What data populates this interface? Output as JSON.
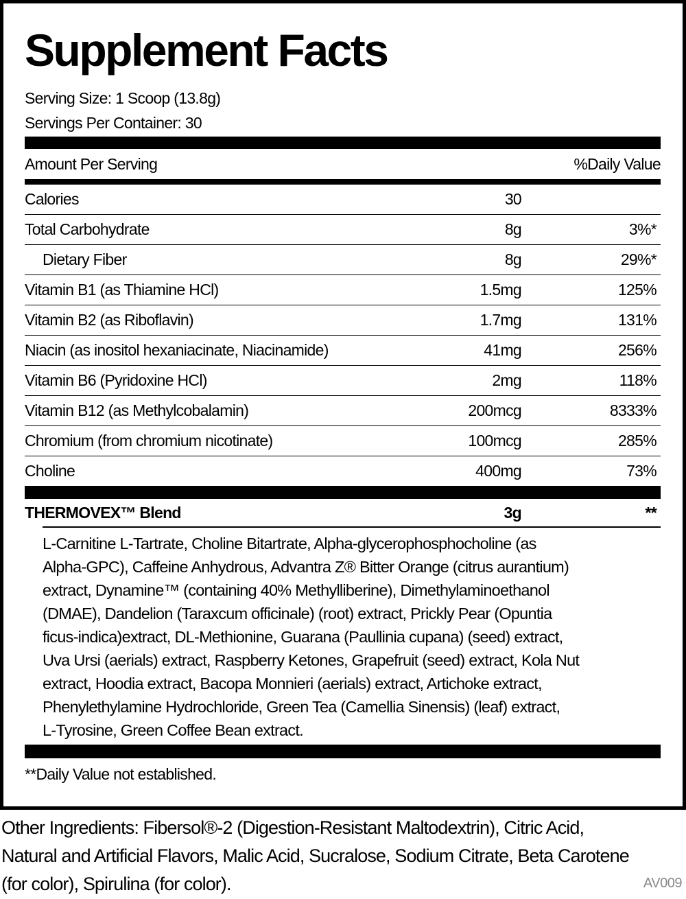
{
  "title": "Supplement Facts",
  "serving_size": "Serving Size: 1 Scoop (13.8g)",
  "servings_per_container": "Servings Per Container: 30",
  "header": {
    "amount": "Amount Per Serving",
    "dv": "%Daily Value"
  },
  "nutrients": [
    {
      "name": "Calories",
      "amount": "30",
      "dv": ""
    },
    {
      "name": "Total Carbohydrate",
      "amount": "8g",
      "dv": "3%*"
    },
    {
      "name": "Dietary Fiber",
      "amount": "8g",
      "dv": "29%*",
      "indent": true
    },
    {
      "name": "Vitamin B1 (as Thiamine HCl)",
      "amount": "1.5mg",
      "dv": "125%"
    },
    {
      "name": "Vitamin B2 (as Riboflavin)",
      "amount": "1.7mg",
      "dv": "131%"
    },
    {
      "name": "Niacin (as inositol hexaniacinate, Niacinamide)",
      "amount": "41mg",
      "dv": "256%"
    },
    {
      "name": "Vitamin B6 (Pyridoxine HCl)",
      "amount": "2mg",
      "dv": "118%"
    },
    {
      "name": "Vitamin B12 (as Methylcobalamin)",
      "amount": "200mcg",
      "dv": "8333%"
    },
    {
      "name": "Chromium (from chromium nicotinate)",
      "amount": "100mcg",
      "dv": "285%"
    },
    {
      "name": "Choline",
      "amount": "400mg",
      "dv": "73%"
    }
  ],
  "blend": {
    "name": "THERMOVEX™ Blend",
    "amount": "3g",
    "dv": "**",
    "ingredient_lines": [
      "L-Carnitine L-Tartrate, Choline Bitartrate, Alpha-glycerophosphocholine (as",
      "Alpha-GPC), Caffeine Anhydrous, Advantra Z® Bitter Orange (citrus aurantium)",
      "extract, Dynamine™ (containing 40% Methylliberine), Dimethylaminoethanol",
      "(DMAE), Dandelion (Taraxcum officinale) (root) extract, Prickly Pear (Opuntia",
      "ficus-indica)extract, DL-Methionine, Guarana (Paullinia cupana) (seed) extract,",
      "Uva Ursi (aerials) extract, Raspberry Ketones, Grapefruit (seed) extract, Kola Nut",
      "extract, Hoodia extract, Bacopa Monnieri (aerials) extract, Artichoke extract,",
      "Phenylethylamine Hydrochloride, Green Tea (Camellia Sinensis) (leaf) extract,",
      "L-Tyrosine, Green Coffee Bean extract."
    ]
  },
  "footnote": "**Daily Value not established.",
  "other_ingredients_lines": [
    "Other Ingredients: Fibersol®-2 (Digestion-Resistant Maltodextrin), Citric Acid,",
    "Natural and Artificial Flavors, Malic Acid, Sucralose, Sodium Citrate, Beta Carotene",
    "(for color), Spirulina (for color)."
  ],
  "code": "AV009"
}
